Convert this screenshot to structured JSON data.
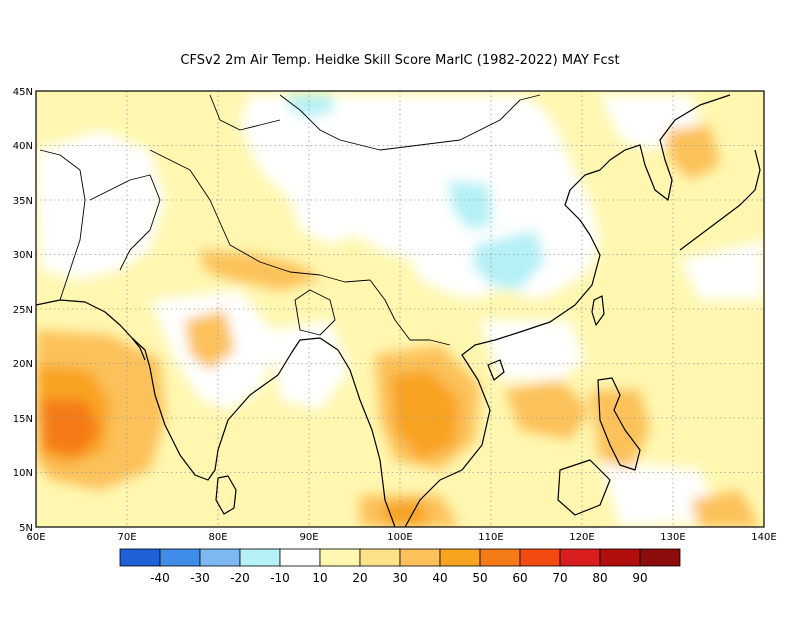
{
  "title": "CFSv2  2m Air Temp. Heidke Skill Score MarIC (1982-2022) MAY Fcst",
  "map": {
    "lon_range": [
      60,
      140
    ],
    "lat_range": [
      5,
      45
    ],
    "x_ticks": [
      "60E",
      "70E",
      "80E",
      "90E",
      "100E",
      "110E",
      "120E",
      "130E",
      "140E"
    ],
    "y_ticks": [
      "5N",
      "10N",
      "15N",
      "20N",
      "25N",
      "30N",
      "35N",
      "40N",
      "45N"
    ],
    "gridlines": "dotted"
  },
  "colorbar": {
    "colors": [
      "#1f5fd8",
      "#3f8de8",
      "#7db9f0",
      "#b4f0f6",
      "#ffffff",
      "#fff7b0",
      "#fde28a",
      "#fcc15a",
      "#f9a320",
      "#f57a18",
      "#f24a10",
      "#d81e1e",
      "#b10e0e",
      "#8c0c0c"
    ],
    "labels": [
      "-40",
      "-30",
      "-20",
      "-10",
      "10",
      "20",
      "30",
      "40",
      "50",
      "60",
      "70",
      "80",
      "90"
    ]
  }
}
